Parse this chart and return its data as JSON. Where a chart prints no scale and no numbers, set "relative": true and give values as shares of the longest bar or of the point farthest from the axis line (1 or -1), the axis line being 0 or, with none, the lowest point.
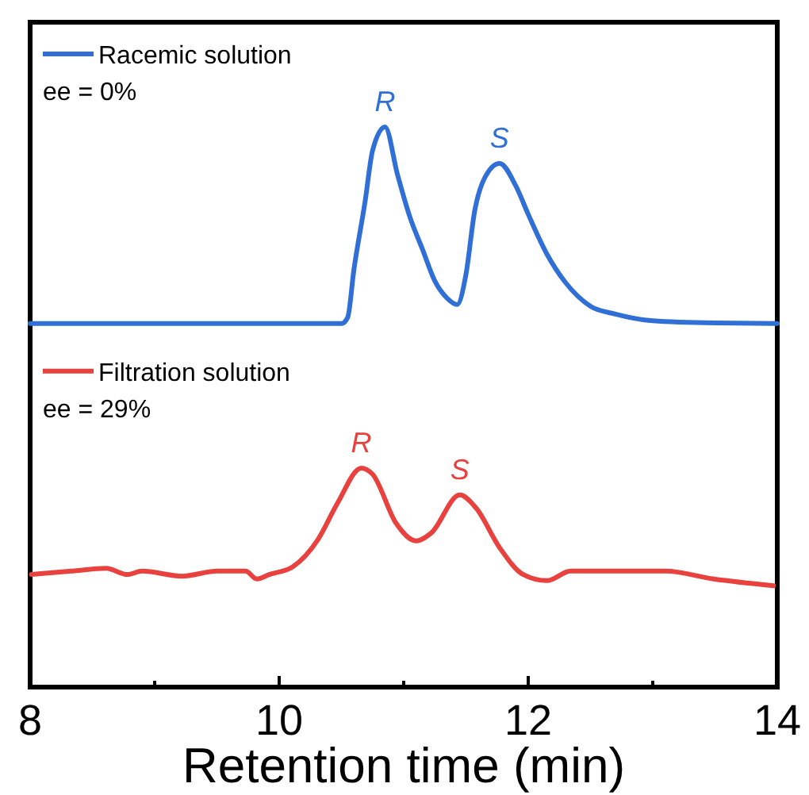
{
  "chart_data": {
    "type": "line",
    "relative": true,
    "xlabel": "Retention time (min)",
    "xlim": [
      8,
      14
    ],
    "xticks": [
      8,
      {
        "value": 9,
        "label": null
      },
      10,
      {
        "value": 11,
        "label": null
      },
      12,
      {
        "value": 13,
        "label": null
      },
      14
    ],
    "legend": "left",
    "grid": false,
    "tick_labels": "x",
    "series": [
      {
        "name": "Racemic solution",
        "color": "#2f6fd6",
        "x": [
          8,
          9,
          10,
          10.5,
          10.55,
          10.6,
          10.69,
          10.75,
          10.85,
          10.95,
          11.05,
          11.15,
          11.25,
          11.35,
          11.43,
          11.5,
          11.57,
          11.65,
          11.77,
          11.9,
          12,
          12.15,
          12.3,
          12.5,
          12.7,
          13,
          13.5,
          14
        ],
        "values": [
          0.649,
          0.649,
          0.649,
          0.649,
          0.66,
          0.745,
          0.867,
          0.958,
          1,
          0.915,
          0.839,
          0.782,
          0.725,
          0.694,
          0.683,
          0.737,
          0.85,
          0.909,
          0.935,
          0.895,
          0.844,
          0.773,
          0.722,
          0.68,
          0.666,
          0.654,
          0.65,
          0.649
        ]
      },
      {
        "name": "Filtration solution",
        "color": "#e8413e",
        "x": [
          8.01,
          8.33,
          8.61,
          8.78,
          8.9,
          9.22,
          9.5,
          9.73,
          9.82,
          9.92,
          10.11,
          10.31,
          10.47,
          10.66,
          10.75,
          10.94,
          11.1,
          11.22,
          11.45,
          11.58,
          11.77,
          11.96,
          12.15,
          12.34,
          12.6,
          13.1,
          13.49,
          13.97
        ],
        "values": [
          0.201,
          0.207,
          0.212,
          0.201,
          0.207,
          0.198,
          0.207,
          0.207,
          0.193,
          0.201,
          0.215,
          0.263,
          0.329,
          0.391,
          0.38,
          0.292,
          0.261,
          0.275,
          0.343,
          0.32,
          0.249,
          0.201,
          0.19,
          0.207,
          0.207,
          0.207,
          0.193,
          0.181
        ]
      }
    ],
    "annotations": [
      "ee = 0%",
      "ee = 29%",
      {
        "text": "R",
        "x": 10.85,
        "y": 1
      },
      {
        "text": "S",
        "x": 11.77,
        "y": 0.935
      },
      {
        "text": "R",
        "x": 10.66,
        "y": 0.391
      },
      {
        "text": "S",
        "x": 11.45,
        "y": 0.343
      }
    ]
  }
}
